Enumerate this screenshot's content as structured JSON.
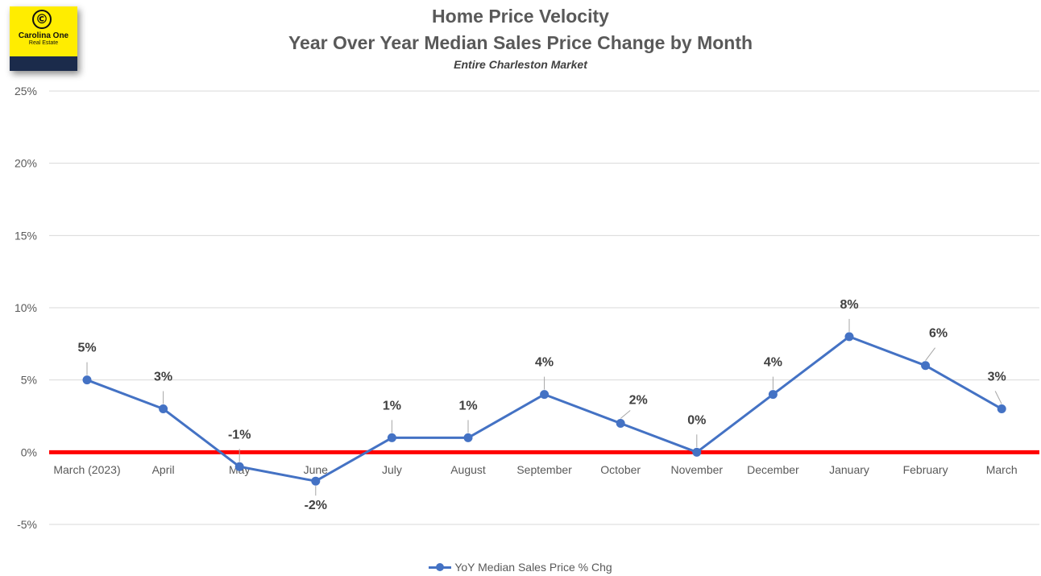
{
  "logo": {
    "name": "Carolina One",
    "sub": "Real Estate",
    "mark": "©"
  },
  "chart_data": {
    "type": "line",
    "title_lines": [
      "Home Price Velocity",
      "Year Over Year Median Sales Price Change by Month"
    ],
    "subtitle": "Entire Charleston Market",
    "xlabel": "",
    "ylabel": "",
    "categories": [
      "March (2023)",
      "April",
      "May",
      "June",
      "July",
      "August",
      "September",
      "October",
      "November",
      "December",
      "January",
      "February",
      "March"
    ],
    "series": [
      {
        "name": "YoY Median Sales Price % Chg",
        "color": "#4472c4",
        "values": [
          5,
          3,
          -1,
          -2,
          1,
          1,
          4,
          2,
          0,
          4,
          8,
          6,
          3
        ],
        "labels": [
          "5%",
          "3%",
          "-1%",
          "-2%",
          "1%",
          "1%",
          "4%",
          "2%",
          "0%",
          "4%",
          "8%",
          "6%",
          "3%"
        ]
      }
    ],
    "ylim": [
      -5,
      25
    ],
    "yticks": [
      -5,
      0,
      5,
      10,
      15,
      20,
      25
    ],
    "ytick_labels": [
      "-5%",
      "0%",
      "5%",
      "10%",
      "15%",
      "20%",
      "25%"
    ],
    "grid": true,
    "reference_line": {
      "value": 0,
      "color": "#ff0000"
    },
    "gridline_color": "#d9d9d9",
    "legend_position": "bottom"
  }
}
